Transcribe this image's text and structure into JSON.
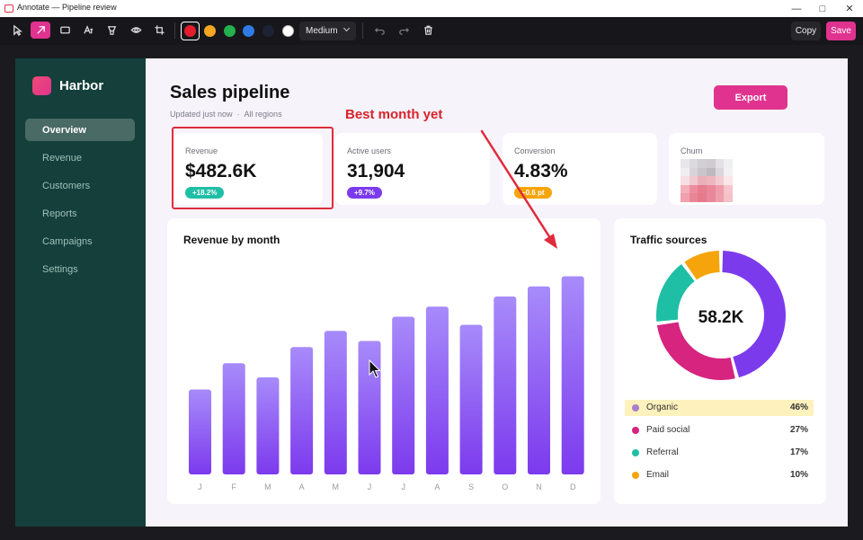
{
  "window": {
    "title": "Annotate — Pipeline review"
  },
  "toolbar": {
    "tools": [
      "select-icon",
      "arrow-icon",
      "rectangle-icon",
      "text-icon",
      "highlighter-icon",
      "blur-icon",
      "crop-icon"
    ],
    "colors": [
      "#e11d2e",
      "#f5a623",
      "#22b14c",
      "#2f7be5",
      "#1e2235",
      "#ffffff"
    ],
    "size": "Medium",
    "copy_label": "Copy",
    "save_label": "Save"
  },
  "app": {
    "brand": "Harbor",
    "nav": [
      "Overview",
      "Revenue",
      "Customers",
      "Reports",
      "Campaigns",
      "Settings"
    ],
    "active_nav": "Overview",
    "title": "Sales pipeline",
    "subtitle_updated": "Updated just now",
    "subtitle_scope": "All regions",
    "export_label": "Export",
    "kpis": [
      {
        "label": "Revenue",
        "value": "$482.6K",
        "delta": "+18.2%",
        "color": "#1fbfa5"
      },
      {
        "label": "Active users",
        "value": "31,904",
        "delta": "+9.7%",
        "color": "#7c3aed"
      },
      {
        "label": "Conversion",
        "value": "4.83%",
        "delta": "−0.6 pt",
        "color": "#f5a50b"
      },
      {
        "label": "Churn"
      }
    ],
    "revenue_title": "Revenue by month",
    "traffic_title": "Traffic sources",
    "traffic_total": "58.2K",
    "traffic": [
      {
        "name": "Organic",
        "pct": "46%",
        "color": "#7c3aed"
      },
      {
        "name": "Paid social",
        "pct": "27%",
        "color": "#d6247f"
      },
      {
        "name": "Referral",
        "pct": "17%",
        "color": "#1fbfa5"
      },
      {
        "name": "Email",
        "pct": "10%",
        "color": "#f5a50b"
      }
    ]
  },
  "annotation": {
    "callout": "Best month yet",
    "color": "#e02b3d"
  },
  "chart_data": [
    {
      "type": "bar",
      "title": "Revenue by month",
      "categories": [
        "J",
        "F",
        "M",
        "A",
        "M",
        "J",
        "J",
        "A",
        "S",
        "O",
        "N",
        "D"
      ],
      "values": [
        42,
        55,
        48,
        63,
        71,
        66,
        78,
        83,
        74,
        88,
        93,
        98
      ],
      "ylim": [
        0,
        100
      ],
      "grid": false
    },
    {
      "type": "pie",
      "title": "Traffic sources",
      "categories": [
        "Organic",
        "Paid social",
        "Referral",
        "Email"
      ],
      "values": [
        46,
        27,
        17,
        10
      ]
    }
  ]
}
